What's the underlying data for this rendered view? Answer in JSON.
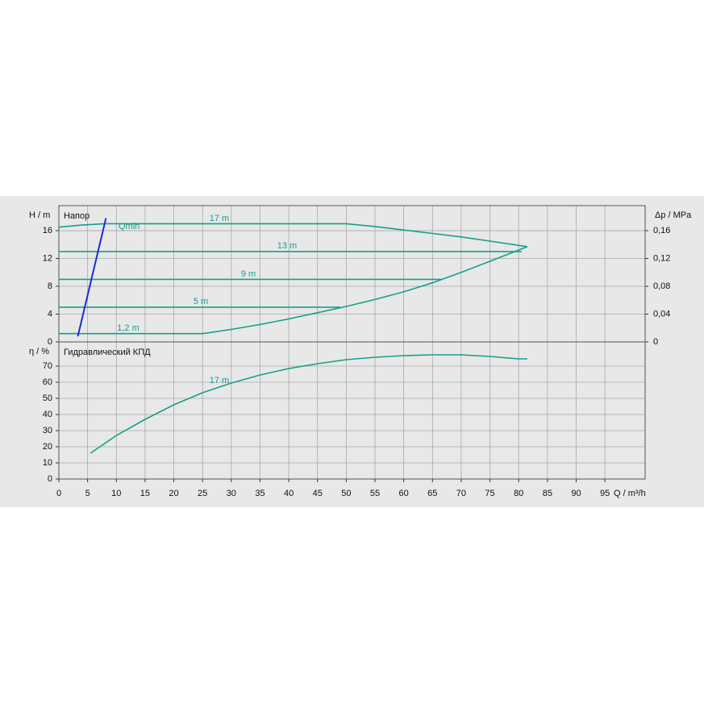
{
  "chart_data": [
    {
      "type": "line",
      "title": "Напор",
      "ylabel": "H / m",
      "y2label": "Δp / MPa",
      "ylim": [
        0,
        19.6
      ],
      "yticks": [
        0,
        4,
        8,
        12,
        16
      ],
      "y2lim": [
        0,
        0.196
      ],
      "y2ticks": [
        0,
        {
          "value": 0.04,
          "label": "0,04"
        },
        {
          "value": 0.08,
          "label": "0,08"
        },
        {
          "value": 0.12,
          "label": "0,12"
        },
        {
          "value": 0.16,
          "label": "0,16"
        }
      ],
      "grid": true,
      "series": [
        {
          "name": "17 m",
          "color": "#14a08a",
          "x": [
            0,
            4,
            8,
            15,
            25,
            35,
            45,
            50,
            55,
            60,
            65,
            70,
            75,
            81.5
          ],
          "values": [
            16.5,
            16.8,
            17,
            17,
            17,
            17,
            17,
            17,
            16.6,
            16.1,
            15.6,
            15.1,
            14.5,
            13.7
          ]
        },
        {
          "name": "13 m",
          "color": "#14a08a",
          "x": [
            0,
            80.5
          ],
          "values": [
            13,
            13
          ]
        },
        {
          "name": "9 m",
          "color": "#14a08a",
          "x": [
            0,
            66.5
          ],
          "values": [
            9,
            9
          ]
        },
        {
          "name": "5 m",
          "color": "#14a08a",
          "x": [
            0,
            49
          ],
          "values": [
            5,
            5
          ]
        },
        {
          "name": "1,2 m",
          "color": "#14a08a",
          "x": [
            0,
            25,
            30,
            35,
            40,
            45,
            50,
            55,
            60,
            65,
            70,
            75,
            81.5
          ],
          "values": [
            1.2,
            1.2,
            1.8,
            2.5,
            3.3,
            4.2,
            5.1,
            6.1,
            7.2,
            8.5,
            10,
            11.6,
            13.7
          ]
        },
        {
          "name": "Qmin",
          "color": "#1a2ed0",
          "x": [
            3.3,
            8.2
          ],
          "values": [
            0.8,
            17.8
          ]
        }
      ]
    },
    {
      "type": "line",
      "title": "Гидравлический КПД",
      "ylabel": "η / %",
      "xlabel": "Q / m³/h",
      "xlim": [
        0,
        102
      ],
      "xticks": [
        0,
        5,
        10,
        15,
        20,
        25,
        30,
        35,
        40,
        45,
        50,
        55,
        60,
        65,
        70,
        75,
        80,
        85,
        90,
        95
      ],
      "ylim": [
        0,
        85
      ],
      "yticks": [
        0,
        10,
        20,
        30,
        40,
        50,
        60,
        70
      ],
      "grid": true,
      "series": [
        {
          "name": "17 m",
          "color": "#14a08a",
          "x": [
            5.5,
            10,
            15,
            20,
            25,
            30,
            35,
            40,
            45,
            50,
            55,
            60,
            65,
            70,
            75,
            80,
            81.5
          ],
          "values": [
            16,
            27,
            37,
            46,
            53.5,
            59.5,
            64.5,
            68.5,
            71.5,
            74,
            75.5,
            76.5,
            77,
            77,
            76,
            74.5,
            74.5
          ]
        }
      ]
    }
  ]
}
